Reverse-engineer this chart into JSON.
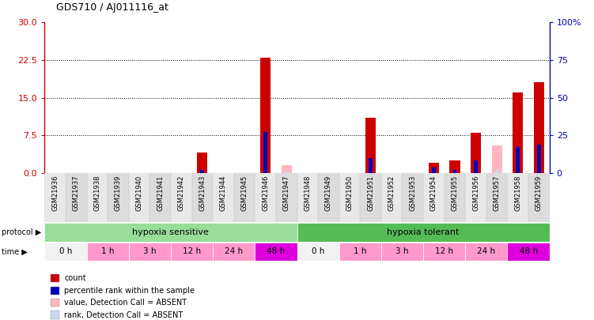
{
  "title": "GDS710 / AJ011116_at",
  "samples": [
    "GSM21936",
    "GSM21937",
    "GSM21938",
    "GSM21939",
    "GSM21940",
    "GSM21941",
    "GSM21942",
    "GSM21943",
    "GSM21944",
    "GSM21945",
    "GSM21946",
    "GSM21947",
    "GSM21948",
    "GSM21949",
    "GSM21950",
    "GSM21951",
    "GSM21952",
    "GSM21953",
    "GSM21954",
    "GSM21955",
    "GSM21956",
    "GSM21957",
    "GSM21958",
    "GSM21959"
  ],
  "count_values": [
    0,
    0,
    0,
    0,
    0,
    0,
    0,
    4.0,
    0,
    0,
    23.0,
    0,
    0,
    0,
    0,
    11.0,
    0,
    0,
    2.0,
    2.5,
    8.0,
    0,
    16.0,
    18.0
  ],
  "rank_values_pct": [
    0,
    0,
    0,
    0,
    0,
    0,
    0,
    2.0,
    0,
    0,
    27.0,
    0,
    0,
    0,
    0,
    10.0,
    0,
    0,
    3.5,
    2.0,
    8.5,
    0,
    17.0,
    18.5
  ],
  "absent_count_values": [
    0,
    0,
    0,
    0,
    0,
    0,
    0,
    0,
    0,
    0,
    0,
    1.5,
    0,
    0,
    0,
    0,
    0,
    0,
    0,
    0,
    0,
    5.5,
    0,
    0
  ],
  "absent_rank_values_pct": [
    0,
    0,
    0,
    0,
    0,
    0,
    0,
    0,
    0,
    0,
    0,
    1.0,
    0,
    0,
    0,
    0,
    0,
    0,
    0,
    0,
    0,
    1.8,
    0,
    0
  ],
  "left_ylim": [
    0,
    30
  ],
  "right_ylim": [
    0,
    100
  ],
  "left_yticks": [
    0,
    7.5,
    15,
    22.5,
    30
  ],
  "right_yticks": [
    0,
    25,
    50,
    75,
    100
  ],
  "right_yticklabels": [
    "0",
    "25",
    "50",
    "75",
    "100%"
  ],
  "bar_color_red": "#CC0000",
  "bar_color_blue": "#0000BB",
  "bar_color_pink": "#FFB6C1",
  "bar_color_lightblue": "#C8D8F0",
  "bg_color": "#FFFFFF",
  "plot_bg": "#FFFFFF",
  "left_axis_color": "#CC0000",
  "right_axis_color": "#0000BB",
  "protocol_groups": [
    {
      "label": "hypoxia sensitive",
      "start": 0,
      "end": 12,
      "color": "#99DD99"
    },
    {
      "label": "hypoxia tolerant",
      "start": 12,
      "end": 24,
      "color": "#55BB55"
    }
  ],
  "time_defs": [
    {
      "label": "0 h",
      "start": 0,
      "end": 2,
      "color": "#F2F2F2"
    },
    {
      "label": "1 h",
      "start": 2,
      "end": 4,
      "color": "#FF99CC"
    },
    {
      "label": "3 h",
      "start": 4,
      "end": 6,
      "color": "#FF99CC"
    },
    {
      "label": "12 h",
      "start": 6,
      "end": 8,
      "color": "#FF99CC"
    },
    {
      "label": "24 h",
      "start": 8,
      "end": 10,
      "color": "#FF99CC"
    },
    {
      "label": "48 h",
      "start": 10,
      "end": 12,
      "color": "#DD00DD"
    },
    {
      "label": "0 h",
      "start": 12,
      "end": 14,
      "color": "#F2F2F2"
    },
    {
      "label": "1 h",
      "start": 14,
      "end": 16,
      "color": "#FF99CC"
    },
    {
      "label": "3 h",
      "start": 16,
      "end": 18,
      "color": "#FF99CC"
    },
    {
      "label": "12 h",
      "start": 18,
      "end": 20,
      "color": "#FF99CC"
    },
    {
      "label": "24 h",
      "start": 20,
      "end": 22,
      "color": "#FF99CC"
    },
    {
      "label": "48 h",
      "start": 22,
      "end": 24,
      "color": "#DD00DD"
    }
  ],
  "legend_items": [
    {
      "color": "#CC0000",
      "label": "count"
    },
    {
      "color": "#0000BB",
      "label": "percentile rank within the sample"
    },
    {
      "color": "#FFB6C1",
      "label": "value, Detection Call = ABSENT"
    },
    {
      "color": "#C8D8F0",
      "label": "rank, Detection Call = ABSENT"
    }
  ]
}
